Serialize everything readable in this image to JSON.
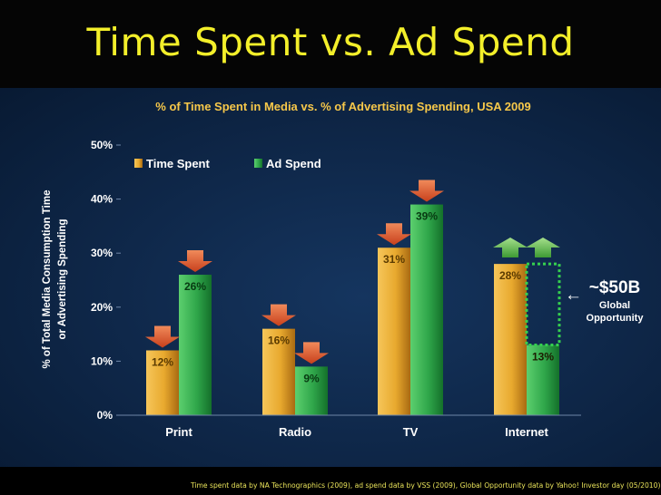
{
  "slide": {
    "title": "Time Spent vs. Ad Spend",
    "source_note": "Time spent data by NA Technographics (2009), ad spend data by VSS (2009), Global Opportunity data by Yahoo! Investor day (05/2010)"
  },
  "chart_data": {
    "type": "bar",
    "title": "% of Time Spent in Media vs. % of Advertising Spending, USA 2009",
    "ylabel_lines": [
      "% of Total Media Consumption Time",
      "or Advertising Spending"
    ],
    "xlabel": "",
    "categories": [
      "Print",
      "Radio",
      "TV",
      "Internet"
    ],
    "series": [
      {
        "name": "Time Spent",
        "values": [
          12,
          16,
          31,
          28
        ],
        "color": "#e8a92e",
        "labels": [
          "12%",
          "16%",
          "31%",
          "28%"
        ]
      },
      {
        "name": "Ad Spend",
        "values": [
          26,
          9,
          39,
          13
        ],
        "color": "#2fa64a",
        "labels": [
          "26%",
          "9%",
          "39%",
          "13%"
        ]
      }
    ],
    "ylim": [
      0,
      50
    ],
    "yticks": [
      0,
      10,
      20,
      30,
      40,
      50
    ],
    "ytick_labels": [
      "0%",
      "10%",
      "20%",
      "30%",
      "40%",
      "50%"
    ],
    "grid": false,
    "legend": "top-left",
    "arrows": [
      {
        "category": "Print",
        "series": "Time Spent",
        "direction": "down",
        "color": "#e0582e"
      },
      {
        "category": "Print",
        "series": "Ad Spend",
        "direction": "down",
        "color": "#e0582e"
      },
      {
        "category": "Radio",
        "series": "Time Spent",
        "direction": "down",
        "color": "#e0582e"
      },
      {
        "category": "Radio",
        "series": "Ad Spend",
        "direction": "down",
        "color": "#e0582e"
      },
      {
        "category": "TV",
        "series": "Time Spent",
        "direction": "down",
        "color": "#e0582e"
      },
      {
        "category": "TV",
        "series": "Ad Spend",
        "direction": "down",
        "color": "#e0582e"
      },
      {
        "category": "Internet",
        "series": "Time Spent",
        "direction": "up",
        "color": "#6fbf5c"
      },
      {
        "category": "Internet",
        "series": "Ad Spend",
        "direction": "up",
        "color": "#6fbf5c"
      }
    ],
    "annotation": {
      "category": "Internet",
      "amount": "~$50B",
      "line1": "Global",
      "line2": "Opportunity",
      "gap_from": 13,
      "gap_to": 28,
      "arrow_glyph": "←"
    }
  }
}
